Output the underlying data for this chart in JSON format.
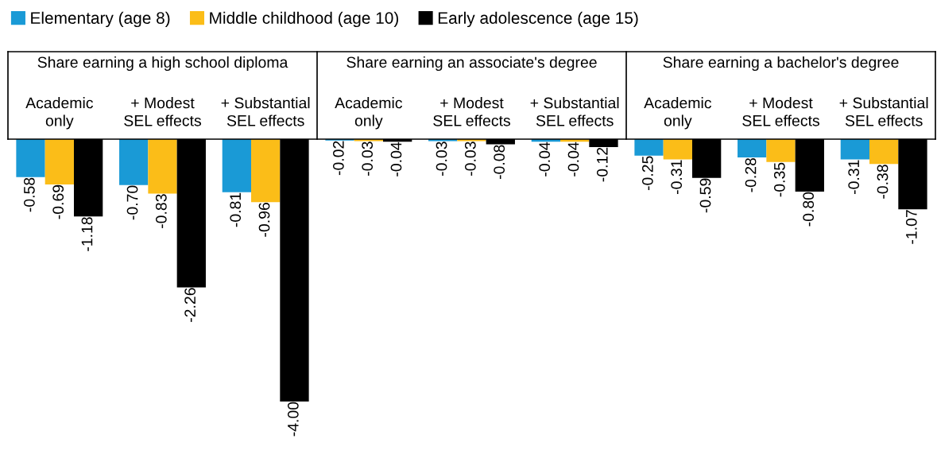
{
  "chart_data": {
    "type": "bar",
    "categories": [
      "Academic\nonly",
      "+ Modest\nSEL effects",
      "+ Substantial\nSEL effects",
      "Academic\nonly",
      "+ Modest\nSEL effects",
      "+ Substantial\nSEL effects",
      "Academic\nonly",
      "+ Modest\nSEL effects",
      "+ Substantial\nSEL effects"
    ],
    "annotations": [
      "Share earning a high school diploma",
      "Share earning an associate's degree",
      "Share earning a bachelor's degree"
    ],
    "legend": "top left",
    "series": [
      {
        "name": "Elementary (age 8)",
        "color": "#1a9ad6",
        "values": [
          -0.58,
          -0.7,
          -0.81,
          -0.02,
          -0.03,
          -0.04,
          -0.25,
          -0.28,
          -0.31
        ],
        "value_labels": [
          "-0.58",
          "-0.70",
          "-0.81",
          "-0.02",
          "-0.03",
          "-0.04",
          "-0.25",
          "-0.28",
          "-0.31"
        ]
      },
      {
        "name": "Middle childhood (age 10)",
        "color": "#fbbd18",
        "values": [
          -0.69,
          -0.83,
          -0.96,
          -0.03,
          -0.03,
          -0.04,
          -0.31,
          -0.35,
          -0.38
        ],
        "value_labels": [
          "-0.69",
          "-0.83",
          "-0.96",
          "-0.03",
          "-0.03",
          "-0.04",
          "-0.31",
          "-0.35",
          "-0.38"
        ]
      },
      {
        "name": "Early adolescence (age 15)",
        "color": "#000000",
        "values": [
          -1.18,
          -2.26,
          -4.0,
          -0.04,
          -0.08,
          -0.12,
          -0.59,
          -0.8,
          -1.07
        ],
        "value_labels": [
          "-1.18",
          "-2.26",
          "-4.00",
          "-0.04",
          "-0.08",
          "-0.12",
          "-0.59",
          "-0.80",
          "-1.07"
        ]
      }
    ]
  }
}
